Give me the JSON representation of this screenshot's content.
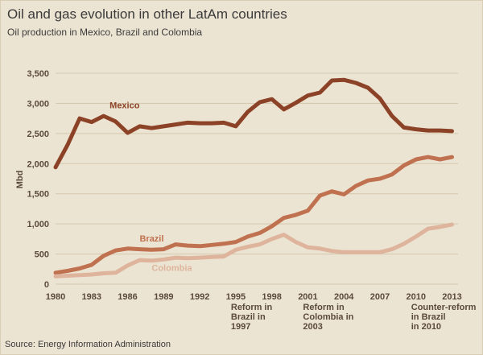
{
  "title": "Oil and gas evolution in other LatAm countries",
  "subtitle": "Oil production in Mexico, Brazil and Colombia",
  "source": "Source: Energy Information Administration",
  "chart_data": {
    "type": "line",
    "ylabel": "Mbd",
    "xlim": [
      1980,
      2013.5
    ],
    "ylim": [
      0,
      3500
    ],
    "x_ticks": [
      1980,
      1983,
      1986,
      1989,
      1992,
      1995,
      1998,
      2001,
      2004,
      2007,
      2010,
      2013
    ],
    "y_ticks": [
      0,
      500,
      1000,
      1500,
      2000,
      2500,
      3000,
      3500
    ],
    "y_tick_labels": [
      "0",
      "500",
      "1,000",
      "1,500",
      "2,000",
      "2,500",
      "3,000",
      "3,500"
    ],
    "grid": "horizontal",
    "x": [
      1980,
      1981,
      1982,
      1983,
      1984,
      1985,
      1986,
      1987,
      1988,
      1989,
      1990,
      1991,
      1992,
      1993,
      1994,
      1995,
      1996,
      1997,
      1998,
      1999,
      2000,
      2001,
      2002,
      2003,
      2004,
      2005,
      2006,
      2007,
      2008,
      2009,
      2010,
      2011,
      2012,
      2013
    ],
    "series": [
      {
        "name": "Mexico",
        "color": "#8b4226",
        "values": [
          1940,
          2310,
          2750,
          2690,
          2790,
          2700,
          2510,
          2620,
          2590,
          2620,
          2650,
          2680,
          2670,
          2670,
          2680,
          2620,
          2860,
          3020,
          3070,
          2900,
          3010,
          3130,
          3180,
          3380,
          3390,
          3340,
          3260,
          3080,
          2790,
          2600,
          2570,
          2550,
          2550,
          2540
        ]
      },
      {
        "name": "Brazil",
        "color": "#c0714f",
        "values": [
          190,
          220,
          260,
          320,
          470,
          560,
          590,
          580,
          570,
          580,
          660,
          640,
          630,
          650,
          670,
          700,
          790,
          850,
          960,
          1100,
          1150,
          1220,
          1470,
          1540,
          1490,
          1630,
          1720,
          1750,
          1820,
          1970,
          2070,
          2110,
          2070,
          2110
        ]
      },
      {
        "name": "Colombia",
        "color": "#deb59c",
        "values": [
          130,
          140,
          150,
          160,
          180,
          190,
          310,
          400,
          390,
          410,
          440,
          430,
          440,
          450,
          460,
          570,
          620,
          660,
          750,
          820,
          700,
          610,
          590,
          550,
          530,
          530,
          530,
          530,
          580,
          670,
          790,
          920,
          950,
          990
        ]
      }
    ],
    "annotations": [
      {
        "x": 1995,
        "lines": [
          "Reform in",
          "Brazil in",
          "1997"
        ]
      },
      {
        "x": 2001,
        "lines": [
          "Reform in",
          "Colombia in",
          "2003"
        ]
      },
      {
        "x": 2010,
        "lines": [
          "Counter-reform",
          "in Brazil",
          "in 2010"
        ]
      }
    ],
    "series_label_positions": [
      {
        "series": "Mexico",
        "x": 1984.5,
        "y": 2920
      },
      {
        "series": "Brazil",
        "x": 1987,
        "y": 710
      },
      {
        "series": "Colombia",
        "x": 1988,
        "y": 220
      }
    ]
  }
}
